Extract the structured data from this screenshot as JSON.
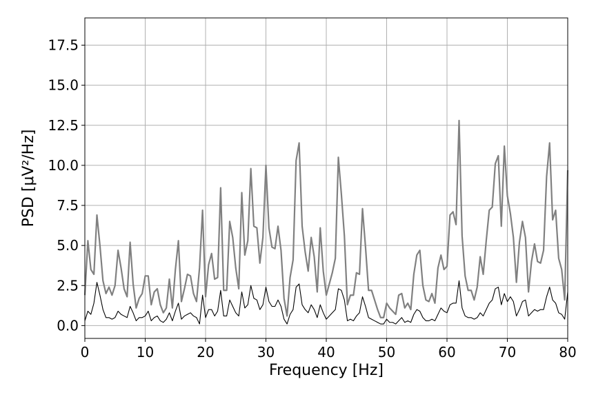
{
  "chart_data": {
    "type": "line",
    "title": "",
    "xlabel": "Frequency [Hz]",
    "ylabel": "PSD [μV²/Hz]",
    "xlim": [
      0,
      80
    ],
    "ylim": [
      -0.8,
      19.2
    ],
    "xticks": [
      0,
      10,
      20,
      30,
      40,
      50,
      60,
      70,
      80
    ],
    "xtick_labels": [
      "0",
      "10",
      "20",
      "30",
      "40",
      "50",
      "60",
      "70",
      "80"
    ],
    "yticks": [
      0,
      2.5,
      5,
      7.5,
      10,
      12.5,
      15,
      17.5
    ],
    "ytick_labels": [
      "0.0",
      "2.5",
      "5.0",
      "7.5",
      "10.0",
      "12.5",
      "15.0",
      "17.5"
    ],
    "grid": true,
    "legend": "none",
    "series": [
      {
        "color": "#808080",
        "x": [
          0,
          0.5,
          1,
          1.5,
          2,
          2.5,
          3,
          3.5,
          4,
          4.5,
          5,
          5.5,
          6,
          6.5,
          7,
          7.5,
          8,
          8.5,
          9,
          9.5,
          10,
          10.5,
          11,
          11.5,
          12,
          12.5,
          13,
          13.5,
          14,
          14.5,
          15,
          15.5,
          16,
          16.5,
          17,
          17.5,
          18,
          18.5,
          19,
          19.5,
          20,
          20.5,
          21,
          21.5,
          22,
          22.5,
          23,
          23.5,
          24,
          24.5,
          25,
          25.5,
          26,
          26.5,
          27,
          27.5,
          28,
          28.5,
          29,
          29.5,
          30,
          30.5,
          31,
          31.5,
          32,
          32.5,
          33,
          33.5,
          34,
          34.5,
          35,
          35.5,
          36,
          36.5,
          37,
          37.5,
          38,
          38.5,
          39,
          39.5,
          40,
          40.5,
          41,
          41.5,
          42,
          42.5,
          43,
          43.5,
          44,
          44.5,
          45,
          45.5,
          46,
          46.5,
          47,
          47.5,
          48,
          48.5,
          49,
          49.5,
          50,
          50.5,
          51,
          51.5,
          52,
          52.5,
          53,
          53.5,
          54,
          54.5,
          55,
          55.5,
          56,
          56.5,
          57,
          57.5,
          58,
          58.5,
          59,
          59.5,
          60,
          60.5,
          61,
          61.5,
          62,
          62.5,
          63,
          63.5,
          64,
          64.5,
          65,
          65.5,
          66,
          66.5,
          67,
          67.5,
          68,
          68.5,
          69,
          69.5,
          70,
          70.5,
          71,
          71.5,
          72,
          72.5,
          73,
          73.5,
          74,
          74.5,
          75,
          75.5,
          76,
          76.5,
          77,
          77.5,
          78,
          78.5,
          79,
          79.5,
          80
        ],
        "y": [
          1.9,
          5.3,
          3.5,
          3.2,
          6.9,
          5.0,
          2.8,
          2.0,
          2.4,
          1.9,
          2.5,
          4.7,
          3.6,
          2.3,
          1.8,
          5.2,
          2.6,
          1.1,
          1.7,
          2.0,
          3.1,
          3.1,
          1.3,
          2.1,
          2.3,
          1.3,
          0.8,
          1.1,
          2.9,
          1.1,
          3.5,
          5.3,
          1.5,
          2.3,
          3.2,
          3.1,
          2.0,
          1.5,
          3.6,
          7.2,
          1.8,
          3.8,
          4.5,
          2.9,
          3.0,
          8.6,
          2.2,
          2.2,
          6.5,
          5.5,
          3.6,
          2.3,
          8.3,
          4.4,
          5.3,
          9.8,
          6.2,
          6.1,
          3.9,
          5.5,
          10.0,
          6.1,
          4.9,
          4.8,
          6.2,
          4.7,
          1.7,
          0.6,
          3.0,
          4.1,
          10.3,
          11.4,
          6.2,
          4.6,
          3.4,
          5.5,
          4.3,
          2.1,
          6.1,
          3.4,
          1.9,
          2.6,
          3.3,
          4.2,
          10.5,
          8.2,
          5.6,
          1.3,
          1.9,
          1.9,
          3.3,
          3.2,
          7.3,
          4.9,
          2.2,
          2.2,
          1.6,
          1.0,
          0.5,
          0.5,
          1.4,
          1.1,
          0.9,
          0.7,
          1.9,
          2.0,
          1.1,
          1.4,
          1.0,
          3.2,
          4.4,
          4.7,
          2.5,
          1.6,
          1.5,
          2.0,
          1.4,
          3.6,
          4.4,
          3.5,
          3.7,
          6.9,
          7.1,
          6.3,
          12.8,
          5.6,
          3.1,
          2.2,
          2.2,
          1.6,
          2.4,
          4.3,
          3.2,
          5.3,
          7.2,
          7.4,
          10.1,
          10.6,
          6.2,
          11.2,
          8.1,
          7.0,
          5.5,
          2.7,
          5.2,
          6.5,
          5.5,
          2.1,
          4.0,
          5.1,
          4.0,
          3.9,
          4.7,
          9.3,
          11.4,
          6.6,
          7.2,
          4.2,
          3.5,
          1.6,
          9.7
        ]
      },
      {
        "color": "#000000",
        "x": [
          0,
          0.5,
          1,
          1.5,
          2,
          2.5,
          3,
          3.5,
          4,
          4.5,
          5,
          5.5,
          6,
          6.5,
          7,
          7.5,
          8,
          8.5,
          9,
          9.5,
          10,
          10.5,
          11,
          11.5,
          12,
          12.5,
          13,
          13.5,
          14,
          14.5,
          15,
          15.5,
          16,
          16.5,
          17,
          17.5,
          18,
          18.5,
          19,
          19.5,
          20,
          20.5,
          21,
          21.5,
          22,
          22.5,
          23,
          23.5,
          24,
          24.5,
          25,
          25.5,
          26,
          26.5,
          27,
          27.5,
          28,
          28.5,
          29,
          29.5,
          30,
          30.5,
          31,
          31.5,
          32,
          32.5,
          33,
          33.5,
          34,
          34.5,
          35,
          35.5,
          36,
          36.5,
          37,
          37.5,
          38,
          38.5,
          39,
          39.5,
          40,
          40.5,
          41,
          41.5,
          42,
          42.5,
          43,
          43.5,
          44,
          44.5,
          45,
          45.5,
          46,
          46.5,
          47,
          47.5,
          48,
          48.5,
          49,
          49.5,
          50,
          50.5,
          51,
          51.5,
          52,
          52.5,
          53,
          53.5,
          54,
          54.5,
          55,
          55.5,
          56,
          56.5,
          57,
          57.5,
          58,
          58.5,
          59,
          59.5,
          60,
          60.5,
          61,
          61.5,
          62,
          62.5,
          63,
          63.5,
          64,
          64.5,
          65,
          65.5,
          66,
          66.5,
          67,
          67.5,
          68,
          68.5,
          69,
          69.5,
          70,
          70.5,
          71,
          71.5,
          72,
          72.5,
          73,
          73.5,
          74,
          74.5,
          75,
          75.5,
          76,
          76.5,
          77,
          77.5,
          78,
          78.5,
          79,
          79.5,
          80
        ],
        "y": [
          0.3,
          0.9,
          0.7,
          1.4,
          2.7,
          1.9,
          1.0,
          0.5,
          0.5,
          0.4,
          0.5,
          0.9,
          0.7,
          0.6,
          0.5,
          1.2,
          0.8,
          0.3,
          0.5,
          0.5,
          0.6,
          0.9,
          0.3,
          0.5,
          0.6,
          0.3,
          0.2,
          0.4,
          0.8,
          0.3,
          0.9,
          1.4,
          0.4,
          0.6,
          0.7,
          0.8,
          0.6,
          0.5,
          0.1,
          1.9,
          0.5,
          1.0,
          1.0,
          0.6,
          0.9,
          2.2,
          0.6,
          0.6,
          1.6,
          1.2,
          0.8,
          0.6,
          2.1,
          1.1,
          1.3,
          2.5,
          1.7,
          1.6,
          1.0,
          1.3,
          2.4,
          1.5,
          1.2,
          1.2,
          1.6,
          1.2,
          0.4,
          0.1,
          0.7,
          1.0,
          2.4,
          2.6,
          1.3,
          1.0,
          0.8,
          1.3,
          1.0,
          0.5,
          1.3,
          0.8,
          0.4,
          0.6,
          0.8,
          1.0,
          2.3,
          2.2,
          1.6,
          0.3,
          0.4,
          0.3,
          0.6,
          0.8,
          1.8,
          1.2,
          0.5,
          0.4,
          0.3,
          0.2,
          0.1,
          0.1,
          0.4,
          0.2,
          0.2,
          0.1,
          0.3,
          0.5,
          0.2,
          0.3,
          0.2,
          0.7,
          1.0,
          0.9,
          0.5,
          0.3,
          0.3,
          0.4,
          0.3,
          0.7,
          1.1,
          0.9,
          0.8,
          1.3,
          1.4,
          1.4,
          2.8,
          1.1,
          0.6,
          0.5,
          0.5,
          0.4,
          0.5,
          0.8,
          0.6,
          1.0,
          1.4,
          1.6,
          2.3,
          2.4,
          1.3,
          2.0,
          1.5,
          1.8,
          1.5,
          0.6,
          1.0,
          1.5,
          1.6,
          0.6,
          0.8,
          1.0,
          0.9,
          1.0,
          1.0,
          1.8,
          2.4,
          1.6,
          1.4,
          0.8,
          0.7,
          0.4,
          2.1
        ]
      }
    ]
  }
}
